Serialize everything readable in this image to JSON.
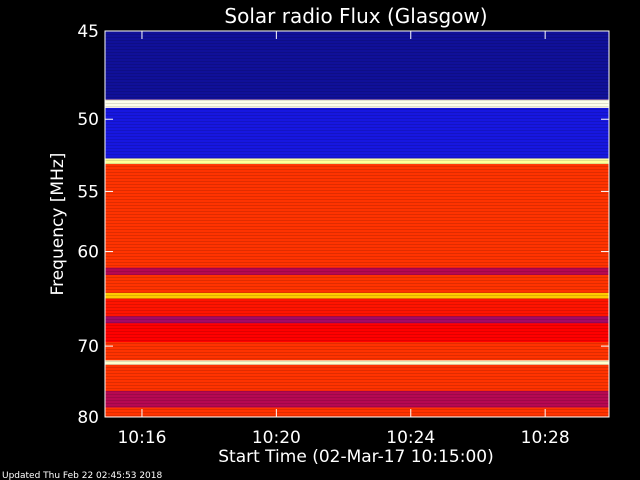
{
  "chart_data": {
    "type": "heatmap",
    "title": "Solar radio Flux (Glasgow)",
    "ylabel": "Frequency [MHz]",
    "xlabel": "Start Time (02-Mar-17 10:15:00)",
    "x_ticks": [
      "10:16",
      "10:20",
      "10:24",
      "10:28"
    ],
    "x_tick_minutes": [
      1,
      5,
      9,
      13
    ],
    "xlim_minutes": [
      -0.1,
      14.9
    ],
    "y_ticks": [
      45,
      50,
      55,
      60,
      70,
      80
    ],
    "ylim": [
      45,
      80
    ],
    "y_scale": "reciprocal",
    "grid": false,
    "colormap": [
      "#000000",
      "#1a1aff",
      "#ff0000",
      "#ffff00",
      "#ffffff"
    ],
    "bands": [
      {
        "from": 45.0,
        "to": 48.8,
        "level": 0.15
      },
      {
        "from": 48.8,
        "to": 49.3,
        "level": 0.98
      },
      {
        "from": 49.3,
        "to": 52.6,
        "level": 0.22
      },
      {
        "from": 52.6,
        "to": 53.0,
        "level": 0.9
      },
      {
        "from": 53.0,
        "to": 61.5,
        "level": 0.55
      },
      {
        "from": 61.5,
        "to": 62.2,
        "level": 0.42
      },
      {
        "from": 62.2,
        "to": 64.0,
        "level": 0.55
      },
      {
        "from": 64.0,
        "to": 64.6,
        "level": 0.7
      },
      {
        "from": 64.6,
        "to": 66.5,
        "level": 0.52
      },
      {
        "from": 66.5,
        "to": 67.3,
        "level": 0.4
      },
      {
        "from": 67.3,
        "to": 69.5,
        "level": 0.5
      },
      {
        "from": 69.5,
        "to": 71.8,
        "level": 0.55
      },
      {
        "from": 71.8,
        "to": 72.4,
        "level": 0.95
      },
      {
        "from": 72.4,
        "to": 76.0,
        "level": 0.55
      },
      {
        "from": 76.0,
        "to": 78.5,
        "level": 0.42
      },
      {
        "from": 78.5,
        "to": 80.0,
        "level": 0.55
      }
    ],
    "footer": "Updated Thu Feb 22 02:45:53 2018"
  }
}
